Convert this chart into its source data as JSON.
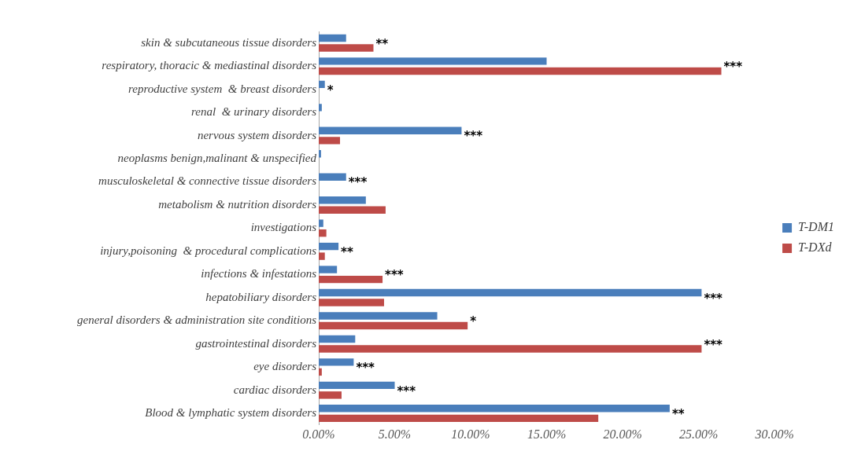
{
  "chart_data": {
    "type": "bar",
    "orientation": "horizontal",
    "categories": [
      "skin & subcutaneous tissue disorders",
      "respiratory, thoracic & mediastinal disorders",
      "reproductive system  & breast disorders",
      "renal  & urinary disorders",
      "nervous system disorders",
      "neoplasms benign,malinant & unspecified",
      "musculoskeletal & connective tissue disorders",
      "metabolism & nutrition disorders",
      "investigations",
      "injury,poisoning  & procedural complications",
      "infections & infestations",
      "hepatobiliary disorders",
      "general disorders & administration site conditions",
      "gastrointestinal disorders",
      "eye disorders",
      "cardiac disorders",
      "Blood & lymphatic system disorders"
    ],
    "series": [
      {
        "name": "T-DM1",
        "color": "#4a7ebb",
        "values": [
          1.8,
          15.0,
          0.4,
          0.2,
          9.4,
          0.15,
          1.8,
          3.1,
          0.3,
          1.3,
          1.2,
          25.2,
          7.8,
          2.4,
          2.3,
          5.0,
          23.1
        ]
      },
      {
        "name": "T-DXd",
        "color": "#be4b48",
        "values": [
          3.6,
          26.5,
          0,
          0,
          1.4,
          0,
          0,
          4.4,
          0.5,
          0.4,
          4.2,
          4.3,
          9.8,
          25.2,
          0.2,
          1.5,
          18.4
        ]
      }
    ],
    "xlim": [
      0,
      30
    ],
    "xticks": [
      {
        "value": 0,
        "label": "0.00%"
      },
      {
        "value": 5,
        "label": "5.00%"
      },
      {
        "value": 10,
        "label": "10.00%"
      },
      {
        "value": 15,
        "label": "15.00%"
      },
      {
        "value": 20,
        "label": "20.00%"
      },
      {
        "value": 25,
        "label": "25.00%"
      },
      {
        "value": 30,
        "label": "30.00%"
      }
    ],
    "grid": false,
    "legend": "right",
    "annotations": [
      {
        "text": "**",
        "x": 3.6,
        "y": "skin & subcutaneous tissue disorders"
      },
      {
        "text": "***",
        "x": 26.5,
        "y": "respiratory, thoracic & mediastinal disorders"
      },
      {
        "text": "*",
        "x": 0.4,
        "y": "reproductive system  & breast disorders"
      },
      {
        "text": "***",
        "x": 9.4,
        "y": "nervous system disorders"
      },
      {
        "text": "***",
        "x": 1.8,
        "y": "musculoskeletal & connective tissue disorders"
      },
      {
        "text": "**",
        "x": 1.3,
        "y": "injury,poisoning  & procedural complications"
      },
      {
        "text": "***",
        "x": 4.2,
        "y": "infections & infestations"
      },
      {
        "text": "***",
        "x": 25.2,
        "y": "hepatobiliary disorders"
      },
      {
        "text": "*",
        "x": 9.8,
        "y": "general disorders & administration site conditions"
      },
      {
        "text": "***",
        "x": 25.2,
        "y": "gastrointestinal disorders"
      },
      {
        "text": "***",
        "x": 2.3,
        "y": "eye disorders"
      },
      {
        "text": "***",
        "x": 5.0,
        "y": "cardiac disorders"
      },
      {
        "text": "**",
        "x": 23.1,
        "y": "Blood & lymphatic system disorders"
      }
    ]
  }
}
